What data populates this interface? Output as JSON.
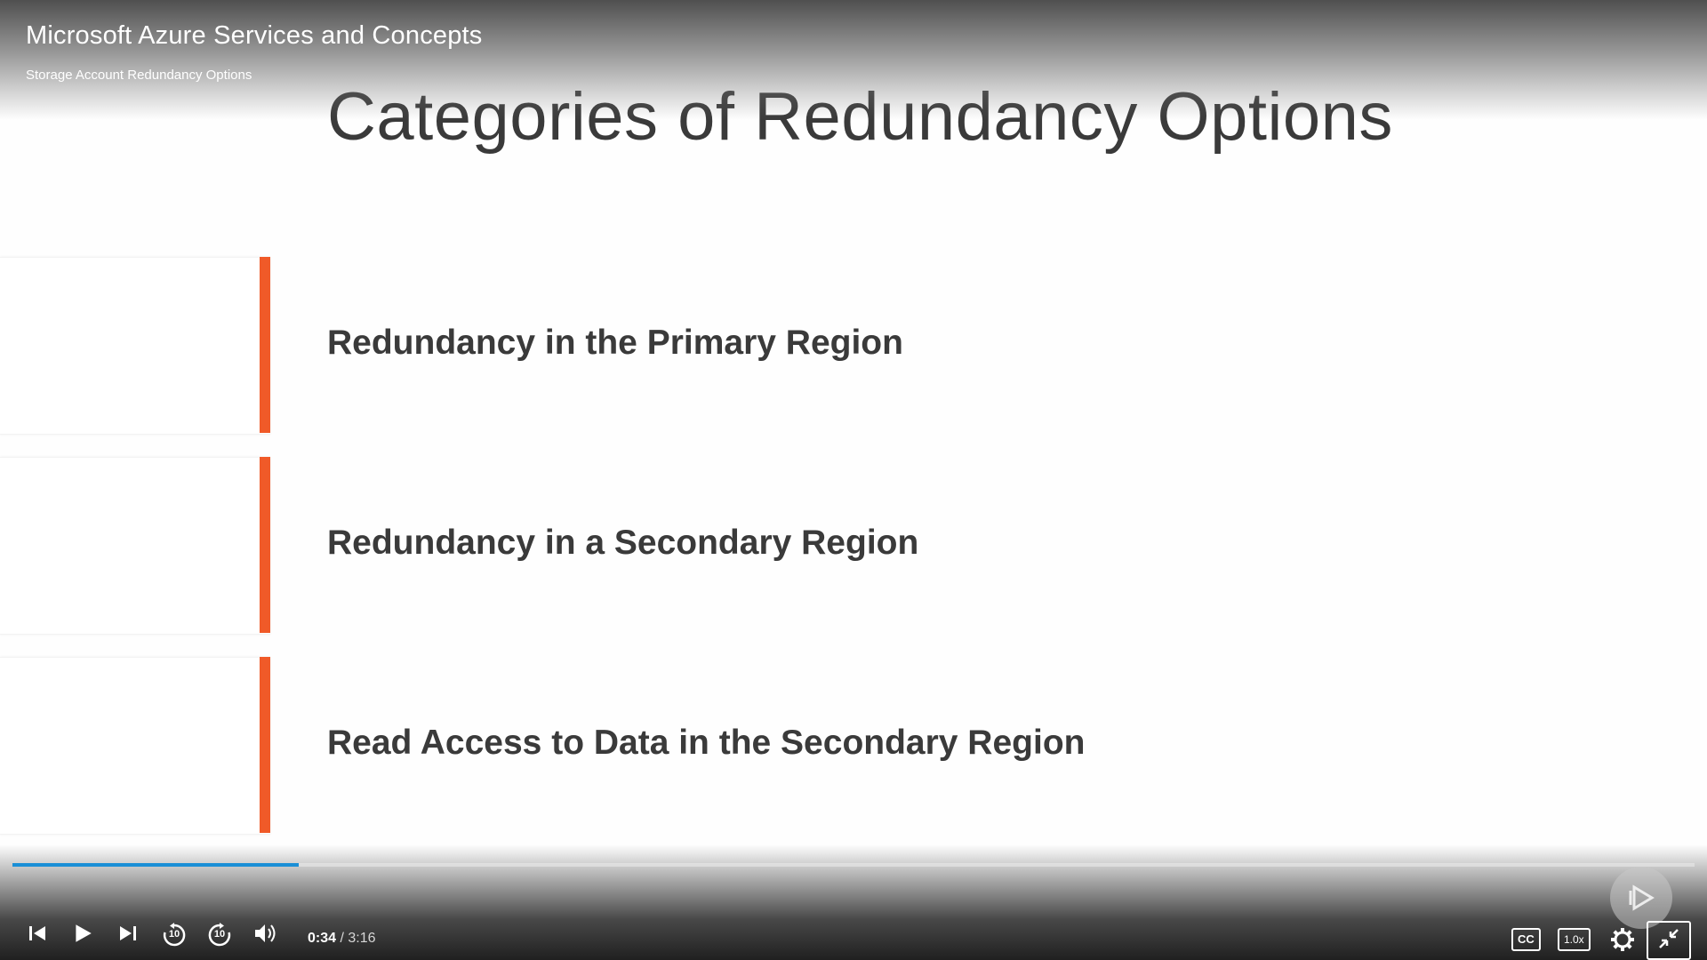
{
  "header": {
    "course_title": "Microsoft Azure Services and Concepts",
    "module_title": "Storage Account Redundancy Options"
  },
  "slide": {
    "title": "Categories of Redundancy Options",
    "accent_color": "#f05a28",
    "items": [
      {
        "label": "Redundancy in the Primary Region"
      },
      {
        "label": "Redundancy in a Secondary Region"
      },
      {
        "label": "Read Access to Data in the Secondary Region"
      }
    ]
  },
  "player": {
    "current_time": "0:34",
    "separator": " / ",
    "total_time": "3:16",
    "progress_fraction": 0.17,
    "progress_color": "#1a8fd6",
    "captions_label": "CC",
    "speed_label": "1.0x",
    "skip_back_seconds": "10",
    "skip_forward_seconds": "10",
    "icons": [
      "previous-icon",
      "play-icon",
      "next-icon",
      "rewind-10-icon",
      "forward-10-icon",
      "volume-icon",
      "captions-icon",
      "speed-icon",
      "settings-gear-icon",
      "exit-fullscreen-icon",
      "pluralsight-logo-icon"
    ]
  }
}
